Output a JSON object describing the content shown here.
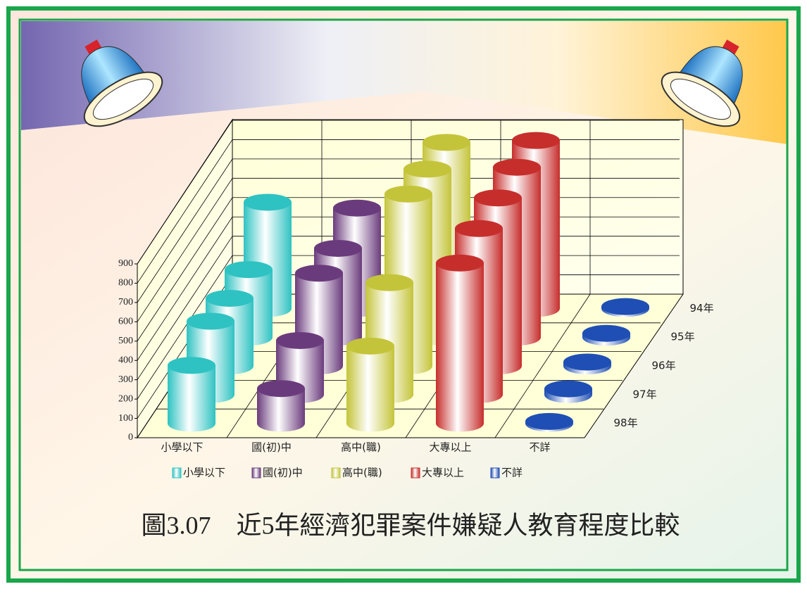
{
  "chart_data": {
    "type": "bar3d",
    "title": "圖3.07　近5年經濟犯罪案件嫌疑人教育程度比較",
    "categories": [
      "小學以下",
      "國(初)中",
      "高中(職)",
      "大專以上",
      "不詳"
    ],
    "depth_categories": [
      "94年",
      "95年",
      "96年",
      "97年",
      "98年"
    ],
    "series": [
      {
        "name": "小學以下",
        "color": "#2fc2c2",
        "values": [
          550,
          350,
          350,
          380,
          300
        ]
      },
      {
        "name": "國(初)中",
        "color": "#6a3b7c",
        "values": [
          520,
          460,
          480,
          280,
          180
        ]
      },
      {
        "name": "高中(職)",
        "color": "#c4c43a",
        "values": [
          860,
          870,
          890,
          580,
          400
        ]
      },
      {
        "name": "大專以上",
        "color": "#c62e2c",
        "values": [
          870,
          880,
          870,
          860,
          830
        ]
      },
      {
        "name": "不詳",
        "color": "#1f4fb4",
        "values": [
          10,
          20,
          20,
          30,
          10
        ]
      }
    ],
    "ylim": [
      0,
      900
    ],
    "yticks": [
      0,
      100,
      200,
      300,
      400,
      500,
      600,
      700,
      800,
      900
    ],
    "grid": true
  }
}
